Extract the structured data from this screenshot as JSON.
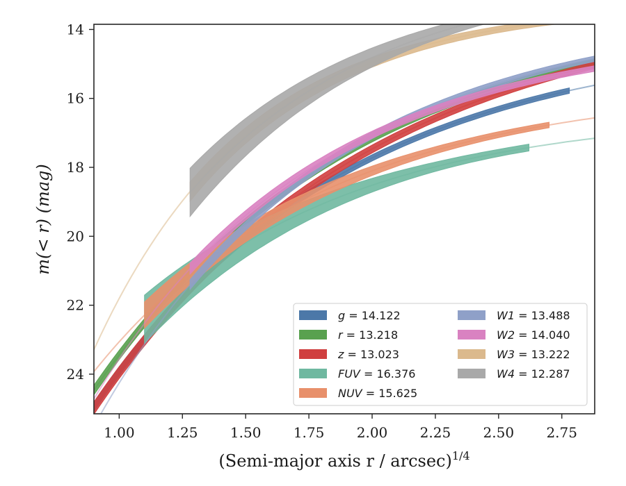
{
  "chart_data": {
    "type": "line",
    "xlabel": {
      "main": "(Semi-major axis r / arcsec)",
      "italic_var": "r",
      "sup": "1/4"
    },
    "ylabel": {
      "pre": "m(",
      "italic": "< r",
      "post": ") (mag)"
    },
    "xlim": [
      0.9,
      2.88
    ],
    "ylim": [
      25.15,
      13.85
    ],
    "y_inverted": true,
    "xticks": [
      "1.00",
      "1.25",
      "1.50",
      "1.75",
      "2.00",
      "2.25",
      "2.50",
      "2.75"
    ],
    "yticks": [
      "14",
      "16",
      "18",
      "20",
      "22",
      "24"
    ],
    "grid": false,
    "legend": {
      "placement": "lower-right",
      "columns": 2
    },
    "series": [
      {
        "key": "g",
        "label_var": "g",
        "label_value": "= 14.122",
        "color": "#4c78a8",
        "x_start": 0.9,
        "x_end": 2.88,
        "band_start": 0.9,
        "band_end": 2.78,
        "m_inf": 14.122,
        "A": 26.63,
        "p": 1.0,
        "width": 0.08,
        "band_width": 0.06
      },
      {
        "key": "r",
        "label_var": "r",
        "label_value": "= 13.218",
        "color": "#59a14f",
        "x_start": 0.9,
        "x_end": 2.88,
        "band_start": 0.9,
        "band_end": 2.88,
        "m_inf": 13.218,
        "A": 26.44,
        "p": 0.95,
        "width": 0.08,
        "band_width": 0.06
      },
      {
        "key": "z",
        "label_var": "z",
        "label_value": "= 13.023",
        "color": "#d03f3f",
        "x_start": 0.9,
        "x_end": 2.88,
        "band_start": 0.9,
        "band_end": 2.88,
        "m_inf": 13.023,
        "A": 26.89,
        "p": 0.9,
        "width": 0.1,
        "band_width": 0.08
      },
      {
        "key": "FUV",
        "label_var": "FUV",
        "label_value": "= 16.376",
        "color": "#6fb8a0",
        "x_start": 1.1,
        "x_end": 2.88,
        "band_start": 1.1,
        "band_end": 2.62,
        "m_inf": 16.376,
        "A": 21.37,
        "p": 1.15,
        "width": 0.1,
        "band_width": 0.6
      },
      {
        "key": "NUV",
        "label_var": "NUV",
        "label_value": "= 15.625",
        "color": "#e8906b",
        "x_start": 0.9,
        "x_end": 2.88,
        "band_start": 1.1,
        "band_end": 2.7,
        "m_inf": 15.625,
        "A": 22.34,
        "p": 1.1,
        "width": 0.08,
        "band_width": 0.3
      },
      {
        "key": "W1",
        "label_var": "W1",
        "label_value": "= 13.488",
        "color": "#8fa0c8",
        "x_start": 0.9,
        "x_end": 2.88,
        "band_start": 1.28,
        "band_end": 2.88,
        "m_inf": 13.488,
        "A": 32.35,
        "p": 1.1,
        "width": 0.08,
        "band_width": 0.06
      },
      {
        "key": "W2",
        "label_var": "W2",
        "label_value": "= 14.040",
        "color": "#d982c1",
        "x_start": 0.9,
        "x_end": 2.88,
        "band_start": 1.28,
        "band_end": 2.88,
        "m_inf": 14.04,
        "A": 30.06,
        "p": 1.15,
        "width": 0.08,
        "band_width": 0.08
      },
      {
        "key": "W3",
        "label_var": "W3",
        "label_value": "= 13.222",
        "color": "#dbb98d",
        "x_start": 0.9,
        "x_end": 2.88,
        "band_start": 1.28,
        "band_end": 2.88,
        "m_inf": 13.222,
        "A": 42.5,
        "p": 1.6,
        "width": 0.08,
        "band_width": 0.2
      },
      {
        "key": "W4",
        "label_var": "W4",
        "label_value": "= 12.287",
        "color": "#a9a9a9",
        "x_start": 1.28,
        "x_end": 2.88,
        "band_start": 1.28,
        "band_end": 2.85,
        "m_inf": 12.287,
        "A": 34.0,
        "p": 1.3,
        "width": 0.1,
        "band_width": 0.6
      }
    ]
  }
}
